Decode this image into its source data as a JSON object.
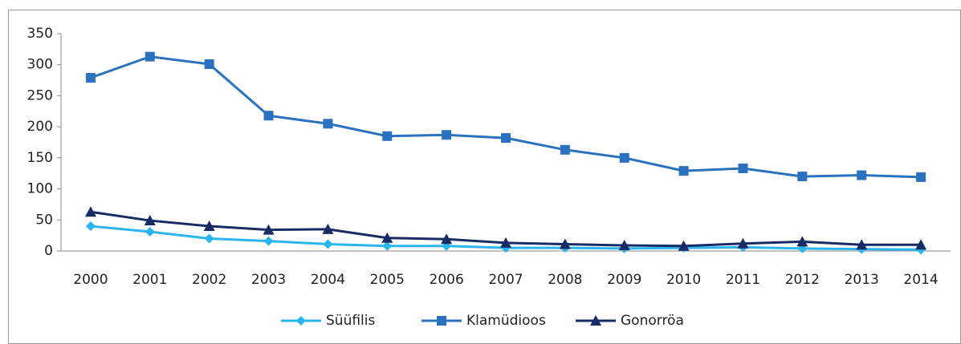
{
  "chart_data": {
    "type": "line",
    "categories": [
      "2000",
      "2001",
      "2002",
      "2003",
      "2004",
      "2005",
      "2006",
      "2007",
      "2008",
      "2009",
      "2010",
      "2011",
      "2012",
      "2013",
      "2014"
    ],
    "series": [
      {
        "name": "Süüfilis",
        "color": "#2bb5ee",
        "marker": "diamond",
        "values": [
          40,
          31,
          20,
          16,
          11,
          8,
          8,
          5,
          5,
          4,
          5,
          6,
          4,
          3,
          2
        ]
      },
      {
        "name": "Klamüdioos",
        "color": "#2a72c0",
        "marker": "square",
        "values": [
          279,
          313,
          301,
          218,
          205,
          185,
          187,
          182,
          163,
          150,
          129,
          133,
          120,
          122,
          119
        ]
      },
      {
        "name": "Gonorröa",
        "color": "#172c66",
        "marker": "triangle",
        "values": [
          63,
          49,
          40,
          34,
          35,
          21,
          19,
          13,
          11,
          9,
          8,
          12,
          15,
          10,
          10
        ]
      }
    ],
    "ylim": [
      0,
      350
    ],
    "yticks": [
      0,
      50,
      100,
      150,
      200,
      250,
      300,
      350
    ],
    "grid": false,
    "legend": "bottom"
  }
}
